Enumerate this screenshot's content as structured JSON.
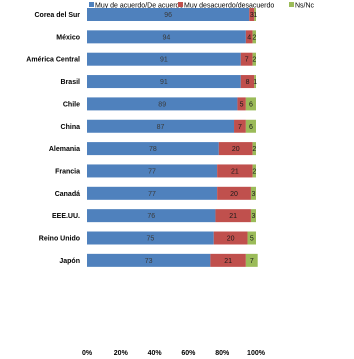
{
  "chart_data": {
    "type": "bar",
    "orientation": "horizontal",
    "stacked": true,
    "categories": [
      "Corea del Sur",
      "México",
      "América Central",
      "Brasil",
      "Chile",
      "China",
      "Alemania",
      "Francia",
      "Canadá",
      "EEE.UU.",
      "Reino Unido",
      "Japón"
    ],
    "series": [
      {
        "name": "Muy de acuerdo/De acuerdo",
        "color": "#4F81BD",
        "values": [
          96,
          94,
          91,
          91,
          89,
          87,
          78,
          77,
          77,
          76,
          75,
          73
        ]
      },
      {
        "name": "Muy desacuerdo/desacuerdo",
        "color": "#C0504D",
        "values": [
          3,
          4,
          7,
          8,
          5,
          7,
          20,
          21,
          20,
          21,
          20,
          21
        ]
      },
      {
        "name": "Ns/Nc",
        "color": "#9BBB59",
        "values": [
          1,
          2,
          2,
          1,
          6,
          6,
          2,
          2,
          3,
          3,
          5,
          7
        ]
      }
    ],
    "xlim": [
      0,
      100
    ],
    "x_ticks": [
      "0%",
      "20%",
      "40%",
      "60%",
      "80%",
      "100%"
    ],
    "legend_position": "top",
    "grid": false
  }
}
